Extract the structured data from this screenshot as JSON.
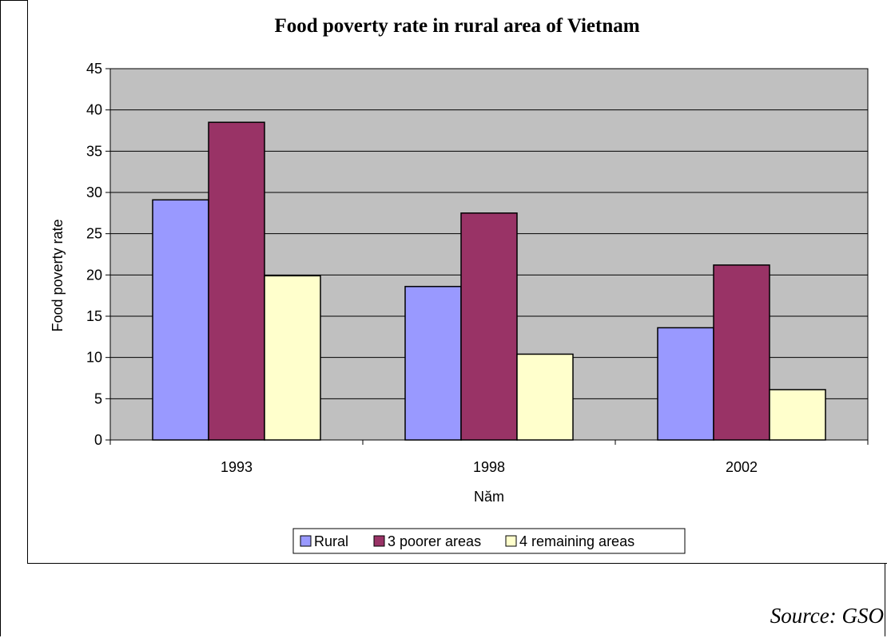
{
  "chart_data": {
    "type": "bar",
    "title": "Food poverty rate in rural area of Vietnam",
    "xlabel": "Năm",
    "ylabel": "Food poverty rate",
    "categories": [
      "1993",
      "1998",
      "2002"
    ],
    "ylim": [
      0,
      45
    ],
    "yticks": [
      0,
      5,
      10,
      15,
      20,
      25,
      30,
      35,
      40,
      45
    ],
    "grid": true,
    "legend_position": "bottom",
    "series": [
      {
        "name": "Rural",
        "color": "#9999ff",
        "values": [
          29.1,
          18.6,
          13.6
        ]
      },
      {
        "name": "3 poorer areas",
        "color": "#993366",
        "values": [
          38.5,
          27.5,
          21.2
        ]
      },
      {
        "name": "4 remaining areas",
        "color": "#ffffcc",
        "values": [
          19.9,
          10.4,
          6.1
        ]
      }
    ],
    "plot_background": "#c0c0c0"
  },
  "source": "Source: GSO"
}
